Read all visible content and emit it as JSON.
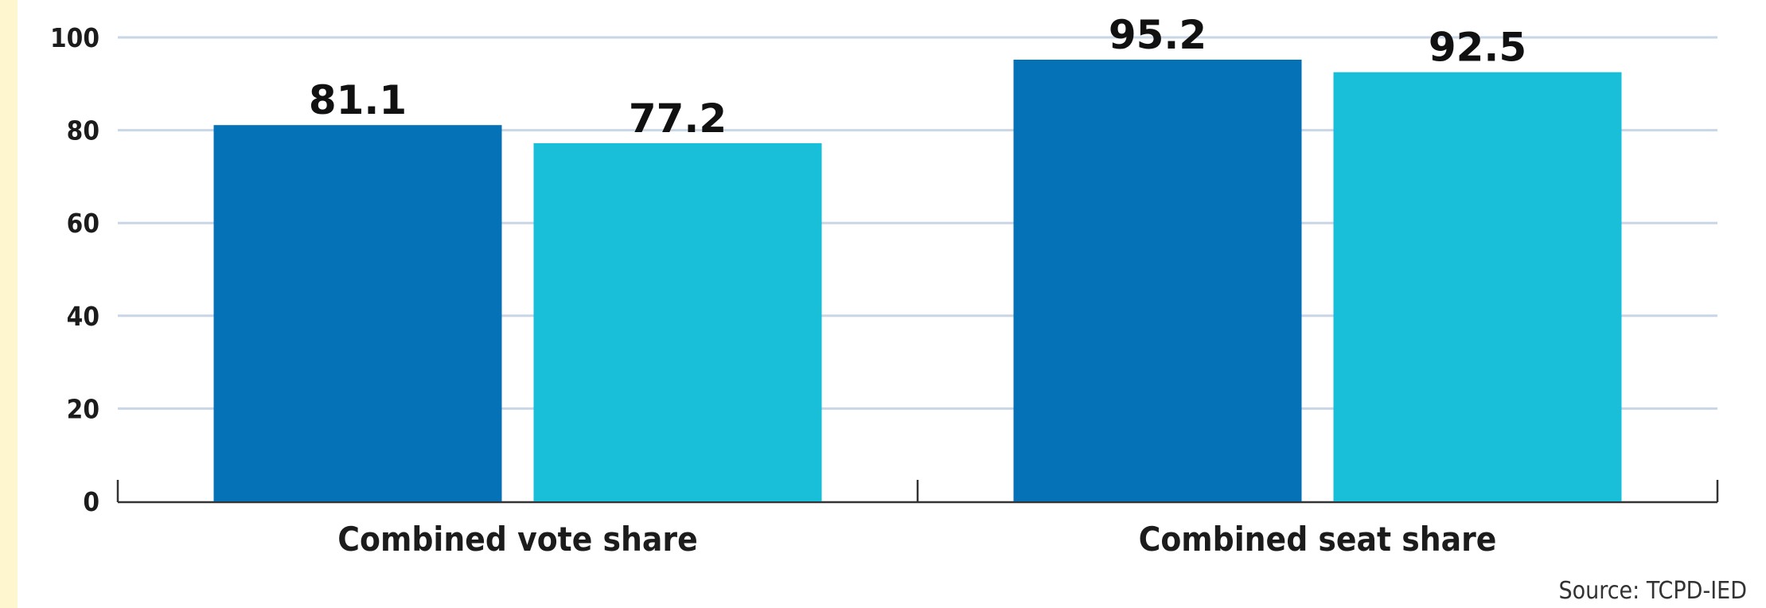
{
  "chart_data": {
    "type": "bar",
    "categories": [
      "Combined vote share",
      "Combined seat share"
    ],
    "series": [
      {
        "color": "#0572b8",
        "values": [
          81.1,
          95.2
        ]
      },
      {
        "color": "#19bfd8",
        "values": [
          77.2,
          92.5
        ]
      }
    ],
    "ylim": [
      0,
      100
    ],
    "yticks": [
      0,
      20,
      40,
      60,
      80,
      100
    ],
    "grid": true,
    "data_labels": true
  },
  "source": "Source: TCPD-IED",
  "colors": {
    "background": "#ffffff",
    "strip": "#fdf6cf",
    "grid": "#c9d6e6",
    "axis": "#333333"
  }
}
